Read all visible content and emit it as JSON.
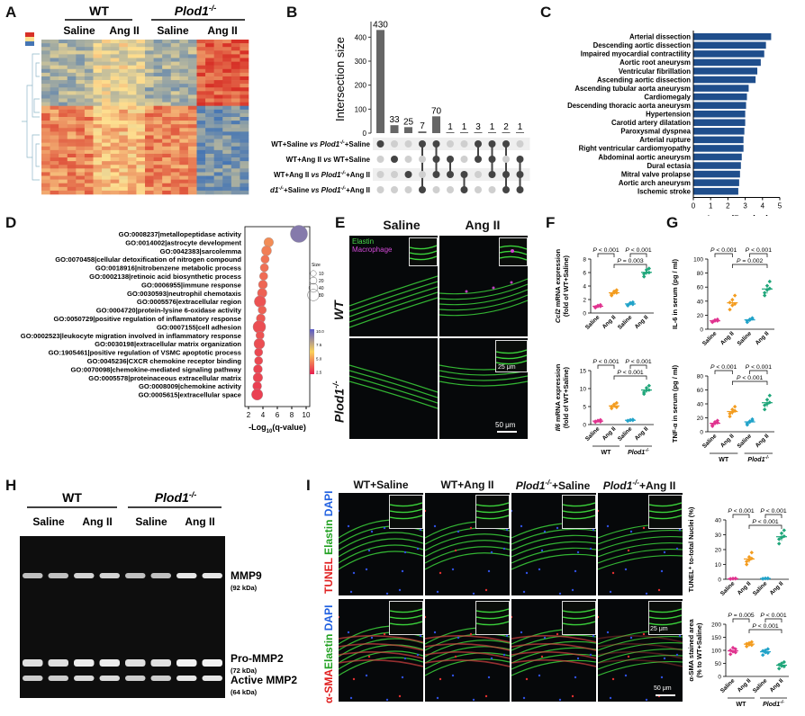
{
  "panel_labels": [
    "A",
    "B",
    "C",
    "D",
    "E",
    "F",
    "G",
    "H",
    "I"
  ],
  "heatmap": {
    "group_wt": "WT",
    "group_ko": "Plod1",
    "ko_sup": "-/-",
    "saline": "Saline",
    "ang": "Ang II",
    "colors": {
      "high": "#d73027",
      "mid": "#fee090",
      "low": "#4575b4"
    }
  },
  "upset": {
    "ylabel": "Intersection size",
    "bars": [
      430,
      33,
      25,
      7,
      70,
      1,
      1,
      3,
      1,
      2,
      1
    ],
    "ymax": 450,
    "yticks": [
      0,
      100,
      200,
      300,
      400
    ],
    "sets": [
      {
        "pre": "WT+Saline ",
        "vs": "vs",
        "post": " Plod1",
        "sup": "-/-",
        "tail": "+Saline"
      },
      {
        "pre": "WT+Ang II ",
        "vs": "vs",
        "post": " WT+Saline",
        "sup": "",
        "tail": ""
      },
      {
        "pre": "WT+Ang II ",
        "vs": "vs",
        "post": " Plod1",
        "sup": "-/-",
        "tail": "+Ang II"
      },
      {
        "pre": "Plod1",
        "presup": "-/-",
        "pre2": "+Saline ",
        "vs": "vs",
        "post": " Plod1",
        "sup": "-/-",
        "tail": "+Ang II"
      }
    ],
    "matrix": [
      [
        1,
        0,
        0,
        1,
        1,
        0,
        0,
        1,
        1,
        1,
        0
      ],
      [
        0,
        1,
        0,
        0,
        1,
        1,
        0,
        1,
        1,
        0,
        1
      ],
      [
        0,
        0,
        1,
        0,
        1,
        1,
        1,
        0,
        1,
        1,
        1
      ],
      [
        0,
        0,
        0,
        1,
        0,
        0,
        1,
        0,
        0,
        1,
        1
      ]
    ]
  },
  "disease": {
    "xlabel_pre": "-Log",
    "xlabel_sub": "10",
    "xlabel_post": "(P-value)",
    "xticks": [
      0,
      1,
      2,
      3,
      4,
      5
    ],
    "color": "#1f4e8c",
    "terms": [
      {
        "name": "Arterial dissection",
        "value": 4.5
      },
      {
        "name": "Descending aortic dissection",
        "value": 4.2
      },
      {
        "name": "Impaired myocardial contractility",
        "value": 4.1
      },
      {
        "name": "Aortic root aneurysm",
        "value": 3.9
      },
      {
        "name": "Ventricular fibrillation",
        "value": 3.7
      },
      {
        "name": "Ascending aortic dissection",
        "value": 3.6
      },
      {
        "name": "Ascending tubular aorta aneurysm",
        "value": 3.2
      },
      {
        "name": "Cardiomegaly",
        "value": 3.1
      },
      {
        "name": "Descending thoracic aorta aneurysm",
        "value": 3.05
      },
      {
        "name": "Hypertension",
        "value": 3.0
      },
      {
        "name": "Carotid artery dilatation",
        "value": 3.0
      },
      {
        "name": "Paroxysmal dyspnea",
        "value": 2.95
      },
      {
        "name": "Arterial rupture",
        "value": 2.9
      },
      {
        "name": "Right ventricular cardiomyopathy",
        "value": 2.9
      },
      {
        "name": "Abdominal aortic aneurysm",
        "value": 2.8
      },
      {
        "name": "Dural ectasia",
        "value": 2.75
      },
      {
        "name": "Mitral valve prolapse",
        "value": 2.7
      },
      {
        "name": "Aortic arch aneurysm",
        "value": 2.65
      },
      {
        "name": "Ischemic stroke",
        "value": 2.6
      }
    ]
  },
  "go": {
    "xlabel_pre": "-Log",
    "xlabel_sub": "10",
    "xlabel_post": "(q-value)",
    "xticks": [
      2,
      4,
      6,
      8,
      10
    ],
    "size_title": "Size",
    "size_values": [
      "10",
      "20",
      "40",
      "80"
    ],
    "color_title": "-log₁₀q-value",
    "color_ticks": [
      "10.0",
      "7.5",
      "5.0",
      "2.5"
    ],
    "terms": [
      {
        "name": "GO:0008237|metallopeptidase activity",
        "q": 9.0,
        "size": 80
      },
      {
        "name": "GO:0014002|astrocyte development",
        "q": 4.8,
        "size": 18
      },
      {
        "name": "GO:0042383|sarcolemma",
        "q": 4.5,
        "size": 20
      },
      {
        "name": "GO:0070458|cellular detoxification of nitrogen compound",
        "q": 4.3,
        "size": 12
      },
      {
        "name": "GO:0018916|nitrobenzene metabolic process",
        "q": 4.2,
        "size": 12
      },
      {
        "name": "GO:0002138|retinoic acid biosynthetic process",
        "q": 4.1,
        "size": 12
      },
      {
        "name": "GO:0006955|immune response",
        "q": 4.0,
        "size": 15
      },
      {
        "name": "GO:0030593|neutrophil chemotaxis",
        "q": 3.9,
        "size": 18
      },
      {
        "name": "GO:0005576|extracellular region",
        "q": 3.6,
        "size": 30
      },
      {
        "name": "GO:0004720|protein-lysine 6-oxidase activity",
        "q": 3.9,
        "size": 12
      },
      {
        "name": "GO:0050729|positive regulation of inflammatory response",
        "q": 3.7,
        "size": 15
      },
      {
        "name": "GO:0007155|cell adhesion",
        "q": 3.5,
        "size": 38
      },
      {
        "name": "GO:0002523|leukocyte migration involved in inflammatory response",
        "q": 3.6,
        "size": 12
      },
      {
        "name": "GO:0030198|extracellular matrix organization",
        "q": 3.5,
        "size": 25
      },
      {
        "name": "GO:1905461|positive regulation of VSMC apoptotic process",
        "q": 3.4,
        "size": 12
      },
      {
        "name": "GO:0045236|CXCR chemokine receptor binding",
        "q": 3.4,
        "size": 12
      },
      {
        "name": "GO:0070098|chemokine-mediated signaling pathway",
        "q": 3.3,
        "size": 15
      },
      {
        "name": "GO:0005578|proteinaceous extracellular matrix",
        "q": 3.3,
        "size": 18
      },
      {
        "name": "GO:0008009|chemokine activity",
        "q": 3.2,
        "size": 15
      },
      {
        "name": "GO:0005615|extracellular space",
        "q": 3.2,
        "size": 28
      }
    ]
  },
  "microE": {
    "col_saline": "Saline",
    "col_ang": "Ang II",
    "row_wt": "WT",
    "row_ko": "Plod1",
    "row_ko_sup": "-/-",
    "legend_elastin": "Elastin",
    "legend_macro": "Macrophage",
    "scale_inset": "25 μm",
    "scale_main": "50 μm"
  },
  "groups": {
    "x": [
      "Saline",
      "Ang II",
      "Saline",
      "Ang II"
    ],
    "wt": "WT",
    "ko": "Plod1",
    "ko_sup": "-/-",
    "colors": [
      "#e0338f",
      "#f39c1f",
      "#22a3c9",
      "#1fa67a"
    ]
  },
  "chart_data": [
    {
      "type": "scatter",
      "panel": "F-top",
      "ylabel_gene": "Ccl2",
      "ylabel_rest": " mRNA expression",
      "ylabel2": "(fold of WT+Saline)",
      "ylim": [
        0,
        8
      ],
      "yticks": [
        0,
        2,
        4,
        6,
        8
      ],
      "series": [
        {
          "values": [
            0.8,
            1.0,
            1.2,
            0.9,
            1.1,
            1.0
          ]
        },
        {
          "values": [
            2.6,
            3.0,
            3.4,
            2.8,
            3.2,
            3.0
          ]
        },
        {
          "values": [
            1.1,
            1.4,
            1.6,
            1.2,
            1.5,
            1.3
          ]
        },
        {
          "values": [
            5.4,
            6.0,
            6.6,
            5.8,
            6.4,
            6.0
          ]
        }
      ],
      "brackets": [
        {
          "from": 0,
          "to": 1,
          "text": "P < 0.001",
          "level": 0
        },
        {
          "from": 2,
          "to": 3,
          "text": "P < 0.001",
          "level": 0
        },
        {
          "from": 1,
          "to": 3,
          "text": "P = 0.003",
          "level": 1
        }
      ]
    },
    {
      "type": "scatter",
      "panel": "F-bottom",
      "ylabel_gene": "Il6",
      "ylabel_rest": " mRNA expression",
      "ylabel2": "(fold of WT+Saline)",
      "ylim": [
        0,
        15
      ],
      "yticks": [
        0,
        5,
        10,
        15
      ],
      "series": [
        {
          "values": [
            0.7,
            1.0,
            1.3,
            0.9,
            1.1,
            0.8
          ]
        },
        {
          "values": [
            4.5,
            5.2,
            6.0,
            5.0,
            5.6,
            4.8
          ]
        },
        {
          "values": [
            1.0,
            1.2,
            1.4,
            1.1,
            1.3,
            1.2
          ]
        },
        {
          "values": [
            8.5,
            9.5,
            10.8,
            9.0,
            10.2,
            9.6
          ]
        }
      ],
      "brackets": [
        {
          "from": 0,
          "to": 1,
          "text": "P < 0.001",
          "level": 0
        },
        {
          "from": 2,
          "to": 3,
          "text": "P < 0.001",
          "level": 0
        },
        {
          "from": 1,
          "to": 3,
          "text": "P < 0.001",
          "level": 1
        }
      ]
    },
    {
      "type": "scatter",
      "panel": "G-top",
      "ylabel_gene": "IL-6",
      "ylabel_rest": " in serum (pg / ml)",
      "ylabel2": "",
      "ylim": [
        0,
        100
      ],
      "yticks": [
        0,
        20,
        40,
        60,
        80,
        100
      ],
      "series": [
        {
          "values": [
            10,
            12,
            14,
            11,
            13,
            12
          ]
        },
        {
          "values": [
            28,
            34,
            48,
            38,
            42,
            36
          ]
        },
        {
          "values": [
            10,
            14,
            16,
            12,
            13,
            15
          ]
        },
        {
          "values": [
            48,
            56,
            68,
            52,
            62,
            58
          ]
        }
      ],
      "brackets": [
        {
          "from": 0,
          "to": 1,
          "text": "P < 0.001",
          "level": 0
        },
        {
          "from": 2,
          "to": 3,
          "text": "P < 0.001",
          "level": 0
        },
        {
          "from": 1,
          "to": 3,
          "text": "P = 0.002",
          "level": 1
        }
      ]
    },
    {
      "type": "scatter",
      "panel": "G-bottom",
      "ylabel_gene": "TNF-α",
      "ylabel_rest": " in serum (pg / ml)",
      "ylabel2": "",
      "ylim": [
        0,
        80
      ],
      "yticks": [
        0,
        20,
        40,
        60,
        80
      ],
      "series": [
        {
          "values": [
            8,
            12,
            16,
            10,
            14,
            13
          ]
        },
        {
          "values": [
            22,
            28,
            36,
            26,
            32,
            30
          ]
        },
        {
          "values": [
            10,
            14,
            18,
            12,
            15,
            16
          ]
        },
        {
          "values": [
            32,
            40,
            52,
            38,
            46,
            42
          ]
        }
      ],
      "brackets": [
        {
          "from": 0,
          "to": 1,
          "text": "P < 0.001",
          "level": 0
        },
        {
          "from": 2,
          "to": 3,
          "text": "P < 0.001",
          "level": 0
        },
        {
          "from": 1,
          "to": 3,
          "text": "P < 0.001",
          "level": 1
        }
      ]
    },
    {
      "type": "scatter",
      "panel": "I-top",
      "ylabel_gene": "TUNEL⁺",
      "ylabel_rest": " to-total Nuclei (%)",
      "ylabel2": "",
      "ylim": [
        0,
        40
      ],
      "yticks": [
        0,
        10,
        20,
        30,
        40
      ],
      "series": [
        {
          "values": [
            0.2,
            0.4,
            0.6,
            0.3,
            0.5,
            0.4
          ]
        },
        {
          "values": [
            10,
            13,
            18,
            12,
            15,
            14
          ]
        },
        {
          "values": [
            0.3,
            0.5,
            0.7,
            0.4,
            0.6,
            0.5
          ]
        },
        {
          "values": [
            24,
            28,
            33,
            27,
            31,
            29
          ]
        }
      ],
      "brackets": [
        {
          "from": 0,
          "to": 1,
          "text": "P < 0.001",
          "level": 0
        },
        {
          "from": 2,
          "to": 3,
          "text": "P < 0.001",
          "level": 0
        },
        {
          "from": 1,
          "to": 3,
          "text": "P < 0.001",
          "level": 1
        }
      ]
    },
    {
      "type": "scatter",
      "panel": "I-bottom",
      "ylabel_gene": "α-SMA",
      "ylabel_rest": " stained area",
      "ylabel2": "(% to WT+Saline)",
      "ylim": [
        0,
        200
      ],
      "yticks": [
        0,
        50,
        100,
        150,
        200
      ],
      "series": [
        {
          "values": [
            85,
            95,
            105,
            100,
            110,
            92
          ]
        },
        {
          "values": [
            115,
            122,
            132,
            125,
            128,
            120
          ]
        },
        {
          "values": [
            82,
            92,
            105,
            98,
            100,
            90
          ]
        },
        {
          "values": [
            30,
            40,
            55,
            45,
            50,
            38
          ]
        }
      ],
      "brackets": [
        {
          "from": 0,
          "to": 1,
          "text": "P = 0.005",
          "level": 0
        },
        {
          "from": 2,
          "to": 3,
          "text": "P < 0.001",
          "level": 0
        },
        {
          "from": 1,
          "to": 3,
          "text": "P < 0.001",
          "level": 1
        }
      ]
    }
  ],
  "gel": {
    "wt": "WT",
    "ko": "Plod1",
    "ko_sup": "-/-",
    "lane_groups": [
      "Saline",
      "Ang II",
      "Saline",
      "Ang II"
    ],
    "bands": [
      {
        "name": "MMP9",
        "size": "(92 kDa)"
      },
      {
        "name": "Pro-MMP2",
        "size": "(72 kDa)"
      },
      {
        "name": "Active MMP2",
        "size": "(64 kDa)"
      }
    ],
    "mmp9_intensity": [
      0.55,
      0.55,
      0.7,
      0.7,
      0.55,
      0.55,
      0.85,
      0.85
    ],
    "pro_intensity": [
      0.8,
      0.8,
      0.9,
      0.9,
      0.8,
      0.8,
      0.95,
      0.95
    ],
    "active_intensity": [
      0.65,
      0.65,
      0.75,
      0.75,
      0.65,
      0.65,
      0.85,
      0.85
    ]
  },
  "microI": {
    "col_titles": [
      {
        "pre": "WT+Saline",
        "sup": "",
        "post": ""
      },
      {
        "pre": "WT+Ang II",
        "sup": "",
        "post": ""
      },
      {
        "pre": "Plod1",
        "sup": "-/-",
        "post": "+Saline"
      },
      {
        "pre": "Plod1",
        "sup": "-/-",
        "post": "+Ang II"
      }
    ],
    "row1_label": {
      "a": "TUNEL",
      "b": "Elastin",
      "c": "DAPI"
    },
    "row2_label": {
      "a": "α-SMA",
      "b": "Elastin",
      "c": "DAPI"
    },
    "scale_inset": "25 μm",
    "scale_main": "50 μm"
  }
}
